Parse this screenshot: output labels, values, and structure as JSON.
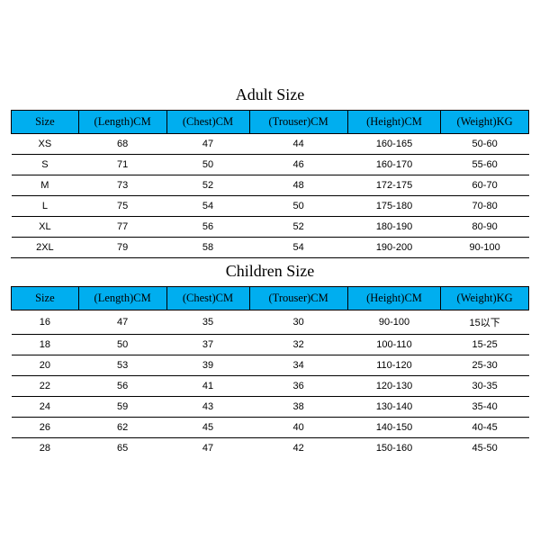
{
  "header_bg": "#00aeef",
  "border_color": "#000000",
  "adult": {
    "title": "Adult Size",
    "columns": [
      "Size",
      "(Length)CM",
      "(Chest)CM",
      "(Trouser)CM",
      "(Height)CM",
      "(Weight)KG"
    ],
    "rows": [
      [
        "XS",
        "68",
        "47",
        "44",
        "160-165",
        "50-60"
      ],
      [
        "S",
        "71",
        "50",
        "46",
        "160-170",
        "55-60"
      ],
      [
        "M",
        "73",
        "52",
        "48",
        "172-175",
        "60-70"
      ],
      [
        "L",
        "75",
        "54",
        "50",
        "175-180",
        "70-80"
      ],
      [
        "XL",
        "77",
        "56",
        "52",
        "180-190",
        "80-90"
      ],
      [
        "2XL",
        "79",
        "58",
        "54",
        "190-200",
        "90-100"
      ]
    ]
  },
  "children": {
    "title": "Children Size",
    "columns": [
      "Size",
      "(Length)CM",
      "(Chest)CM",
      "(Trouser)CM",
      "(Height)CM",
      "(Weight)KG"
    ],
    "rows": [
      [
        "16",
        "47",
        "35",
        "30",
        "90-100",
        "15以下"
      ],
      [
        "18",
        "50",
        "37",
        "32",
        "100-110",
        "15-25"
      ],
      [
        "20",
        "53",
        "39",
        "34",
        "110-120",
        "25-30"
      ],
      [
        "22",
        "56",
        "41",
        "36",
        "120-130",
        "30-35"
      ],
      [
        "24",
        "59",
        "43",
        "38",
        "130-140",
        "35-40"
      ],
      [
        "26",
        "62",
        "45",
        "40",
        "140-150",
        "40-45"
      ],
      [
        "28",
        "65",
        "47",
        "42",
        "150-160",
        "45-50"
      ]
    ]
  }
}
